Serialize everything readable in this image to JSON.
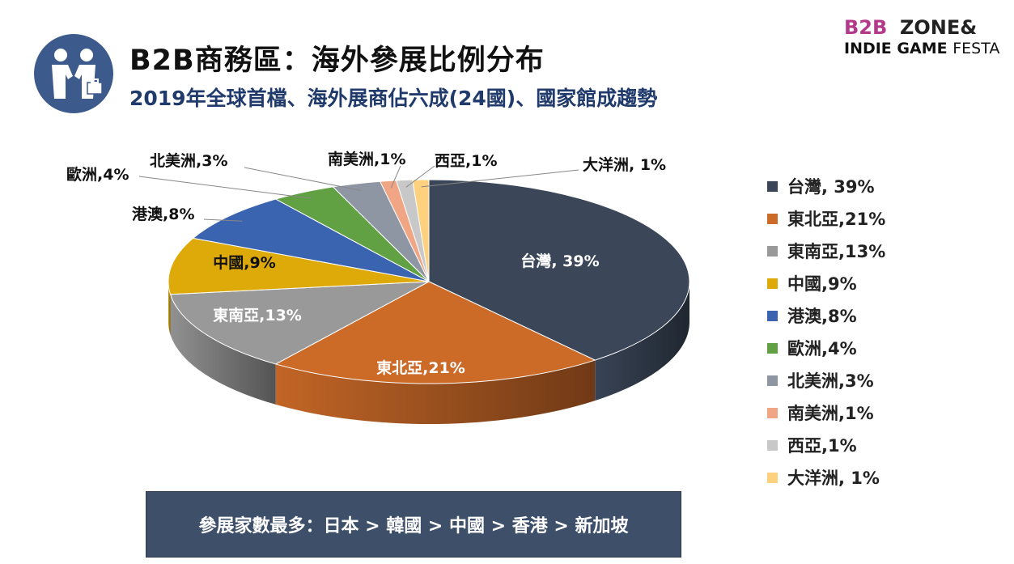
{
  "header": {
    "title": "B2B商務區：海外參展比例分布",
    "subtitle": "2019年全球首檔、海外展商佔六成(24國)、國家館成趨勢"
  },
  "logo": {
    "line1_b2b": "B2B",
    "line1_zone": "ZONE&",
    "line2_indie": "INDIE GAME ",
    "line2_festa": "FESTA"
  },
  "chart_data": {
    "type": "pie",
    "title": "",
    "start_angle_deg": 0,
    "direction": "clockwise",
    "slices": [
      {
        "label": "台灣, 39%",
        "value": 39,
        "color": "#3b4759",
        "label_pos": "inside"
      },
      {
        "label": "東北亞,21%",
        "value": 21,
        "color": "#cc6a28",
        "label_pos": "inside"
      },
      {
        "label": "東南亞,13%",
        "value": 13,
        "color": "#999999",
        "label_pos": "inside"
      },
      {
        "label": "中國,9%",
        "value": 9,
        "color": "#deaa0a",
        "label_pos": "inside",
        "label_color": "#111111"
      },
      {
        "label": "港澳,8%",
        "value": 8,
        "color": "#3a63b0",
        "label_pos": "outside"
      },
      {
        "label": "歐洲,4%",
        "value": 4,
        "color": "#62a044",
        "label_pos": "outside"
      },
      {
        "label": "北美洲,3%",
        "value": 3,
        "color": "#8f96a3",
        "label_pos": "outside"
      },
      {
        "label": "南美洲,1%",
        "value": 1,
        "color": "#f0a584",
        "label_pos": "outside"
      },
      {
        "label": "西亞,1%",
        "value": 1,
        "color": "#c8c8c8",
        "label_pos": "outside"
      },
      {
        "label": "大洋洲, 1%",
        "value": 1,
        "color": "#fdd17e",
        "label_pos": "outside"
      }
    ],
    "legend": {
      "position": "right",
      "entries": [
        "台灣, 39%",
        "東北亞,21%",
        "東南亞,13%",
        "中國,9%",
        "港澳,8%",
        "歐洲,4%",
        "北美洲,3%",
        "南美洲,1%",
        "西亞,1%",
        "大洋洲, 1%"
      ]
    }
  },
  "footer": {
    "banner": "參展家數最多：日本 > 韓國 > 中國 > 香港 > 新加坡"
  }
}
